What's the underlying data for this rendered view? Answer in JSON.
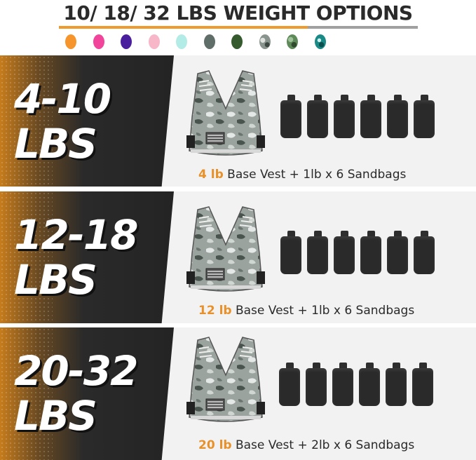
{
  "header": {
    "title": "10/ 18/ 32 LBS WEIGHT OPTIONS"
  },
  "colors": {
    "accent": "#ef9a2d",
    "dark": "#262626",
    "panel": "#f2f2f2"
  },
  "color_options": [
    "#f5952b",
    "#f0459a",
    "#4a1f9e",
    "#f8b6c9",
    "#b3ece6",
    "#5f6e68",
    "#355a2e",
    "camo-gray",
    "camo-green",
    "camo-teal"
  ],
  "options": [
    {
      "range_line1": "4-10",
      "range_line2": "LBS",
      "base": "4 lb",
      "detail": " Base Vest + 1lb x 6 Sandbags",
      "bags": 6
    },
    {
      "range_line1": "12-18",
      "range_line2": "LBS",
      "base": "12 lb",
      "detail": " Base Vest + 1lb x 6 Sandbags",
      "bags": 6
    },
    {
      "range_line1": "20-32",
      "range_line2": "LBS",
      "base": "20 lb",
      "detail": " Base Vest + 2lb x 6 Sandbags",
      "bags": 6
    }
  ]
}
